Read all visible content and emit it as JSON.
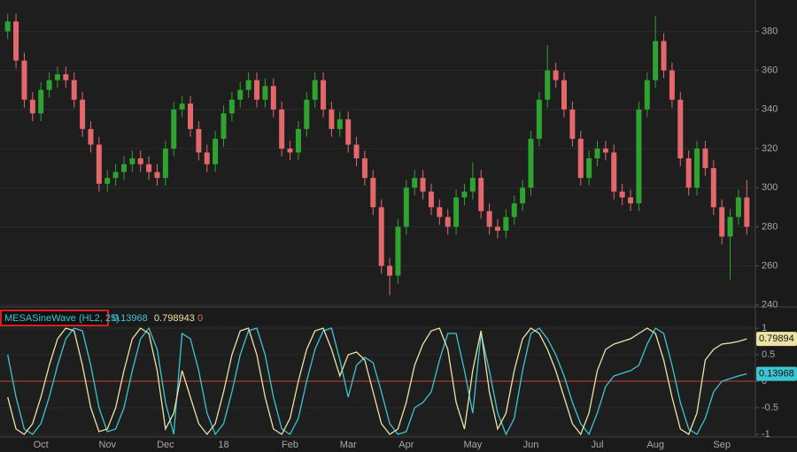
{
  "chart_data": [
    {
      "type": "candlestick",
      "categories": [
        null,
        null,
        null,
        null,
        "Oct",
        null,
        null,
        null,
        null,
        null,
        null,
        null,
        "Nov",
        null,
        null,
        null,
        null,
        null,
        null,
        "Dec",
        null,
        null,
        null,
        null,
        null,
        null,
        "18",
        null,
        null,
        null,
        null,
        null,
        null,
        null,
        "Feb",
        null,
        null,
        null,
        null,
        null,
        null,
        "Mar",
        null,
        null,
        null,
        null,
        null,
        null,
        "Apr",
        null,
        null,
        null,
        null,
        null,
        null,
        null,
        "May",
        null,
        null,
        null,
        null,
        null,
        null,
        "Jun",
        null,
        null,
        null,
        null,
        null,
        null,
        null,
        "Jul",
        null,
        null,
        null,
        null,
        null,
        null,
        "Aug",
        null,
        null,
        null,
        null,
        null,
        null,
        null,
        "Sep",
        null,
        null,
        null
      ],
      "open": [
        380,
        385,
        365,
        345,
        338,
        350,
        355,
        358,
        355,
        345,
        330,
        322,
        302,
        305,
        308,
        312,
        315,
        312,
        308,
        305,
        320,
        340,
        343,
        330,
        318,
        312,
        325,
        338,
        345,
        350,
        355,
        345,
        352,
        340,
        320,
        318,
        330,
        345,
        355,
        340,
        330,
        335,
        322,
        315,
        305,
        290,
        260,
        255,
        280,
        300,
        305,
        298,
        290,
        285,
        280,
        295,
        298,
        305,
        288,
        280,
        278,
        285,
        292,
        300,
        325,
        345,
        360,
        355,
        340,
        325,
        305,
        315,
        320,
        318,
        298,
        295,
        292,
        340,
        355,
        375,
        360,
        345,
        315,
        300,
        320,
        310,
        290,
        275,
        285,
        295
      ],
      "high": [
        389,
        389,
        369,
        349,
        354,
        359,
        362,
        362,
        359,
        349,
        334,
        326,
        309,
        312,
        316,
        319,
        319,
        316,
        312,
        324,
        344,
        347,
        347,
        334,
        322,
        329,
        342,
        349,
        354,
        359,
        359,
        356,
        356,
        344,
        324,
        334,
        349,
        359,
        359,
        344,
        339,
        339,
        326,
        319,
        309,
        294,
        264,
        284,
        304,
        309,
        309,
        302,
        294,
        289,
        299,
        302,
        313,
        309,
        292,
        284,
        289,
        296,
        304,
        329,
        349,
        373,
        364,
        359,
        344,
        329,
        319,
        324,
        324,
        322,
        302,
        299,
        344,
        359,
        388,
        379,
        364,
        349,
        319,
        324,
        324,
        314,
        294,
        289,
        299,
        304
      ],
      "low": [
        376,
        361,
        341,
        334,
        334,
        346,
        351,
        351,
        341,
        326,
        318,
        298,
        298,
        301,
        304,
        308,
        308,
        304,
        301,
        301,
        316,
        336,
        326,
        314,
        308,
        308,
        321,
        334,
        341,
        346,
        341,
        341,
        336,
        316,
        314,
        314,
        326,
        341,
        336,
        326,
        326,
        318,
        311,
        301,
        286,
        256,
        245,
        251,
        276,
        296,
        294,
        286,
        281,
        276,
        276,
        291,
        294,
        284,
        276,
        274,
        274,
        281,
        288,
        296,
        321,
        341,
        351,
        336,
        321,
        301,
        301,
        311,
        314,
        294,
        291,
        288,
        288,
        336,
        351,
        356,
        341,
        311,
        296,
        296,
        306,
        286,
        271,
        253,
        281,
        276
      ],
      "close": [
        385,
        365,
        345,
        338,
        350,
        355,
        358,
        355,
        345,
        330,
        322,
        302,
        305,
        308,
        312,
        315,
        312,
        308,
        305,
        320,
        340,
        343,
        330,
        318,
        312,
        325,
        338,
        345,
        350,
        355,
        345,
        352,
        340,
        320,
        318,
        330,
        345,
        355,
        340,
        330,
        335,
        322,
        315,
        305,
        290,
        260,
        255,
        280,
        300,
        305,
        298,
        290,
        285,
        280,
        295,
        298,
        305,
        288,
        280,
        278,
        285,
        292,
        300,
        325,
        345,
        360,
        355,
        340,
        325,
        305,
        315,
        320,
        318,
        298,
        295,
        292,
        340,
        355,
        375,
        360,
        345,
        315,
        300,
        320,
        310,
        290,
        275,
        285,
        295,
        280
      ],
      "up_color": "#2fa32f",
      "down_color": "#e4676b",
      "ylim": [
        239,
        396
      ],
      "yticks": [
        240,
        260,
        280,
        300,
        320,
        340,
        360,
        380
      ],
      "grid": true
    },
    {
      "type": "line",
      "title": "MESASineWave (HL2, 25)",
      "series": [
        {
          "color": "#3cc6d2",
          "values": [
            0.5,
            -0.3,
            -0.9,
            -1,
            -0.8,
            -0.3,
            0.3,
            0.8,
            1,
            0.95,
            0.3,
            -0.5,
            -0.95,
            -0.9,
            -0.5,
            0.2,
            0.8,
            1,
            0.6,
            -0.4,
            -1,
            0.9,
            0.8,
            0.2,
            -0.6,
            -1,
            -0.8,
            -0.2,
            0.5,
            0.95,
            1,
            0.5,
            -0.3,
            -0.9,
            -1,
            -0.7,
            0,
            0.6,
            0.95,
            1,
            0.4,
            -0.3,
            0.3,
            0.45,
            0.35,
            -0.2,
            -0.8,
            -1,
            -0.95,
            -0.5,
            -0.4,
            -0.2,
            0.4,
            0.9,
            0.9,
            0.2,
            -0.6,
            0.9,
            0.2,
            -0.6,
            -1,
            -0.7,
            0.2,
            0.9,
            1,
            0.8,
            0.5,
            0.1,
            -0.4,
            -0.8,
            -1,
            -0.6,
            -0.1,
            0.1,
            0.15,
            0.2,
            0.3,
            0.7,
            1,
            0.9,
            0.3,
            -0.4,
            -0.9,
            -1,
            -0.7,
            -0.2,
            0,
            0.05,
            0.1,
            0.13968
          ]
        },
        {
          "color": "#ece3a4",
          "last_label": "0.79894",
          "values": [
            -0.3,
            -0.9,
            -1,
            -0.8,
            -0.3,
            0.3,
            0.8,
            1,
            0.95,
            0.3,
            -0.5,
            -0.95,
            -0.9,
            -0.5,
            0.2,
            0.8,
            1,
            0.9,
            0.2,
            -0.9,
            -0.6,
            0.2,
            -0.3,
            -0.8,
            -1,
            -0.8,
            -0.2,
            0.5,
            0.95,
            1,
            0.5,
            -0.3,
            -0.9,
            -1,
            -0.7,
            0,
            0.6,
            0.95,
            1,
            0.6,
            0.1,
            0.5,
            0.55,
            0.4,
            -0.2,
            -0.8,
            -1,
            -0.9,
            -0.4,
            0.3,
            0.7,
            0.95,
            1,
            0.6,
            -0.4,
            -0.9,
            0.2,
            0.95,
            -0.2,
            -0.9,
            -0.6,
            0.2,
            0.8,
            1,
            0.9,
            0.6,
            0.2,
            -0.3,
            -0.8,
            -1,
            -0.6,
            0.2,
            0.6,
            0.7,
            0.75,
            0.8,
            0.9,
            1,
            0.9,
            0.4,
            -0.3,
            -0.9,
            -1,
            -0.6,
            0.4,
            0.6,
            0.7,
            0.72,
            0.75,
            0.798943
          ]
        }
      ],
      "zero_line": {
        "value": 0,
        "color": "#c8403a"
      },
      "ylim": [
        -1.05,
        1.05
      ],
      "yticks": [
        1,
        0.5,
        0,
        -0.5,
        -1
      ],
      "grid": true
    }
  ]
}
